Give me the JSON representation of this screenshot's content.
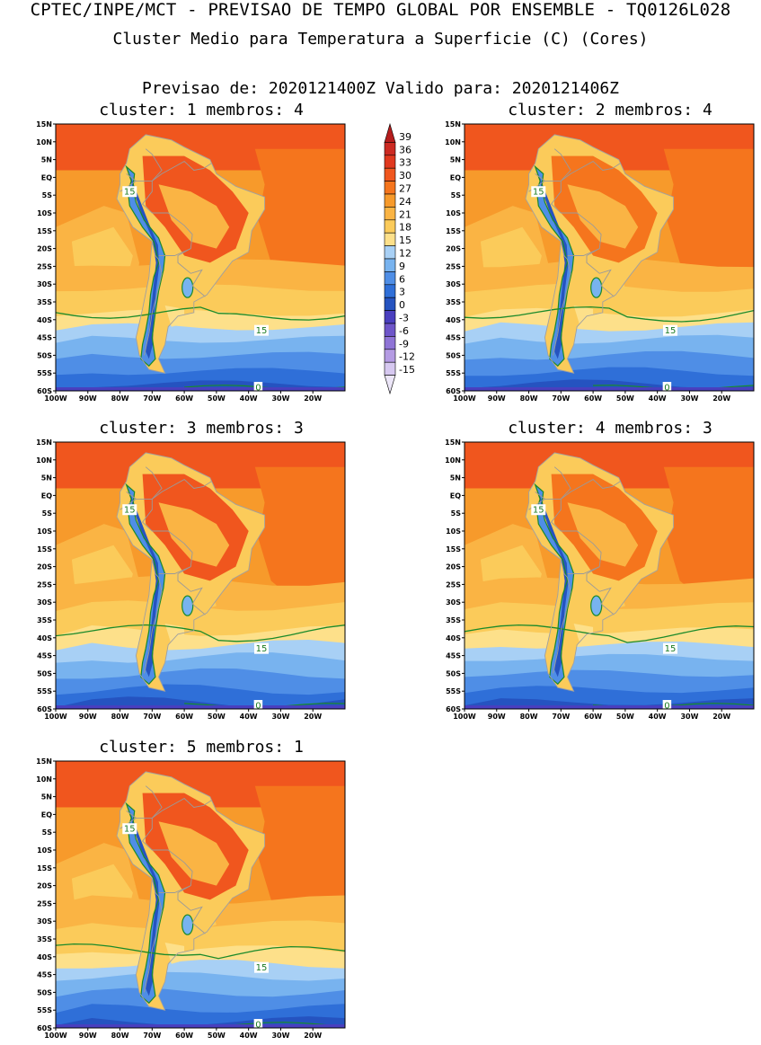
{
  "header": {
    "title": "CPTEC/INPE/MCT - PREVISAO DE TEMPO GLOBAL POR ENSEMBLE - TQ0126L028",
    "subtitle": "Cluster Medio para Temperatura a Superficie (C) (Cores)",
    "forecast_line": "Previsao de: 2020121400Z   Valido para: 2020121406Z"
  },
  "map": {
    "lat_labels": [
      "15N",
      "10N",
      "5N",
      "EQ",
      "5S",
      "10S",
      "15S",
      "20S",
      "25S",
      "30S",
      "35S",
      "40S",
      "45S",
      "50S",
      "55S",
      "60S"
    ],
    "lon_labels": [
      "100W",
      "90W",
      "80W",
      "70W",
      "60W",
      "50W",
      "40W",
      "30W",
      "20W"
    ],
    "lat_range": [
      -60,
      15
    ],
    "lon_range": [
      -100,
      -10
    ]
  },
  "panels": [
    {
      "title": "cluster: 1   membros: 4"
    },
    {
      "title": "cluster: 2   membros: 4"
    },
    {
      "title": "cluster: 3   membros: 3"
    },
    {
      "title": "cluster: 4   membros: 3"
    },
    {
      "title": "cluster: 5   membros: 1"
    }
  ],
  "contour_labels": {
    "c15": "15",
    "c0": "0"
  },
  "colorbar": {
    "labels": [
      "39",
      "36",
      "33",
      "30",
      "27",
      "24",
      "21",
      "18",
      "15",
      "12",
      "9",
      "6",
      "3",
      "0",
      "-3",
      "-6",
      "-9",
      "-12",
      "-15"
    ],
    "colors": [
      "#b51d1d",
      "#cc2a22",
      "#e0381e",
      "#f0561e",
      "#f5751d",
      "#f79a2b",
      "#fab444",
      "#fbcb5a",
      "#fde08a",
      "#a8d0f5",
      "#78b3ef",
      "#4f8ee6",
      "#2f6fd8",
      "#2553c0",
      "#4a3fbf",
      "#6e55c9",
      "#8f74d6",
      "#b49be3",
      "#d6c8f0",
      "#ece6f8"
    ]
  }
}
